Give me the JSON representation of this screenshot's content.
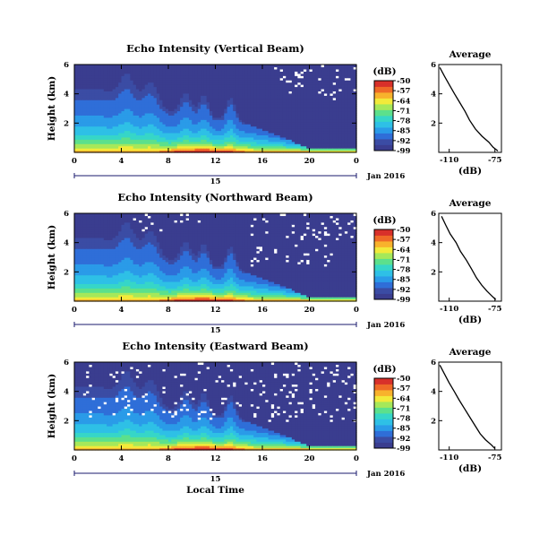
{
  "chart_data": [
    {
      "type": "heatmap",
      "title": "Echo Intensity (Vertical Beam)",
      "ylabel": "Height (km)",
      "x_ticks": [
        "0",
        "4",
        "8",
        "12",
        "16",
        "20",
        "0"
      ],
      "y_ticks": [
        "6",
        "4",
        "2"
      ],
      "xlim": [
        0,
        24
      ],
      "ylim": [
        0,
        6
      ],
      "colorbar": {
        "unit": "(dB)",
        "ticks": [
          "-50",
          "-57",
          "-64",
          "-71",
          "-78",
          "-85",
          "-92",
          "-99"
        ]
      },
      "date_axis": {
        "day": "15",
        "month_label": "Jan 2016"
      },
      "missing_data": "few gaps above 4 km after 20 LT",
      "average_profile": {
        "title": "Average",
        "xlabel": "(dB)",
        "x_ticks": [
          "-110",
          "-75"
        ],
        "y_ticks": [
          "6",
          "4",
          "2"
        ],
        "xlim": [
          -118,
          -70
        ],
        "ylim": [
          0,
          6
        ],
        "x": [
          -117,
          -114,
          -110,
          -106,
          -102,
          -98,
          -94,
          -90,
          -85,
          -80,
          -76,
          -73
        ],
        "y": [
          5.8,
          5.2,
          4.6,
          4.0,
          3.4,
          2.8,
          2.2,
          1.6,
          1.1,
          0.7,
          0.35,
          0.1
        ]
      }
    },
    {
      "type": "heatmap",
      "title": "Echo Intensity (Northward Beam)",
      "ylabel": "Height (km)",
      "x_ticks": [
        "0",
        "4",
        "8",
        "12",
        "16",
        "20",
        "0"
      ],
      "y_ticks": [
        "6",
        "4",
        "2"
      ],
      "xlim": [
        0,
        24
      ],
      "ylim": [
        0,
        6
      ],
      "colorbar": {
        "unit": "(dB)",
        "ticks": [
          "-50",
          "-57",
          "-64",
          "-71",
          "-78",
          "-85",
          "-92",
          "-99"
        ]
      },
      "date_axis": {
        "day": "15",
        "month_label": "Jan 2016"
      },
      "missing_data": "scattered gaps above 3 km after 16 LT",
      "average_profile": {
        "title": "Average",
        "xlabel": "(dB)",
        "x_ticks": [
          "-110",
          "-75"
        ],
        "y_ticks": [
          "6",
          "4",
          "2"
        ],
        "xlim": [
          -118,
          -70
        ],
        "ylim": [
          0,
          6
        ],
        "x": [
          -116,
          -113,
          -109,
          -105,
          -101,
          -97,
          -93,
          -89,
          -85,
          -81,
          -77,
          -74
        ],
        "y": [
          5.8,
          5.2,
          4.6,
          4.0,
          3.4,
          2.8,
          2.2,
          1.6,
          1.1,
          0.7,
          0.35,
          0.1
        ]
      }
    },
    {
      "type": "heatmap",
      "title": "Echo Intensity (Eastward Beam)",
      "ylabel": "Height (km)",
      "xlabel": "Local Time",
      "x_ticks": [
        "0",
        "4",
        "8",
        "12",
        "16",
        "20",
        "0"
      ],
      "y_ticks": [
        "6",
        "4",
        "2"
      ],
      "xlim": [
        0,
        24
      ],
      "ylim": [
        0,
        6
      ],
      "colorbar": {
        "unit": "(dB)",
        "ticks": [
          "-50",
          "-57",
          "-64",
          "-71",
          "-78",
          "-85",
          "-92",
          "-99"
        ]
      },
      "date_axis": {
        "day": "15",
        "month_label": "Jan 2016"
      },
      "missing_data": "scattered gaps above 3 km throughout",
      "average_profile": {
        "title": "Average",
        "xlabel": "(dB)",
        "x_ticks": [
          "-110",
          "-75"
        ],
        "y_ticks": [
          "6",
          "4",
          "2"
        ],
        "xlim": [
          -118,
          -70
        ],
        "ylim": [
          0,
          6
        ],
        "x": [
          -117,
          -114,
          -110,
          -106,
          -102,
          -98,
          -94,
          -90,
          -86,
          -82,
          -78,
          -75
        ],
        "y": [
          5.8,
          5.2,
          4.6,
          4.0,
          3.4,
          2.8,
          2.2,
          1.6,
          1.1,
          0.7,
          0.35,
          0.1
        ]
      }
    }
  ]
}
